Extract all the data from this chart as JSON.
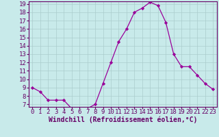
{
  "x": [
    0,
    1,
    2,
    3,
    4,
    5,
    6,
    7,
    8,
    9,
    10,
    11,
    12,
    13,
    14,
    15,
    16,
    17,
    18,
    19,
    20,
    21,
    22,
    23
  ],
  "y": [
    9.0,
    8.5,
    7.5,
    7.5,
    7.5,
    6.5,
    6.5,
    6.5,
    7.0,
    9.5,
    12.0,
    14.5,
    16.0,
    18.0,
    18.5,
    19.2,
    18.8,
    16.8,
    13.0,
    11.5,
    11.5,
    10.5,
    9.5,
    8.8
  ],
  "line_color": "#990099",
  "marker": "D",
  "marker_size": 2.2,
  "bg_color": "#c8eaea",
  "grid_color": "#aacccc",
  "xlabel": "Windchill (Refroidissement éolien,°C)",
  "xlabel_color": "#660066",
  "tick_color": "#660066",
  "ylim_min": 7,
  "ylim_max": 19,
  "yticks": [
    7,
    8,
    9,
    10,
    11,
    12,
    13,
    14,
    15,
    16,
    17,
    18,
    19
  ],
  "xticks": [
    0,
    1,
    2,
    3,
    4,
    5,
    6,
    7,
    8,
    9,
    10,
    11,
    12,
    13,
    14,
    15,
    16,
    17,
    18,
    19,
    20,
    21,
    22,
    23
  ],
  "border_color": "#660066",
  "font_size": 6.5,
  "xlabel_fontsize": 7.0
}
